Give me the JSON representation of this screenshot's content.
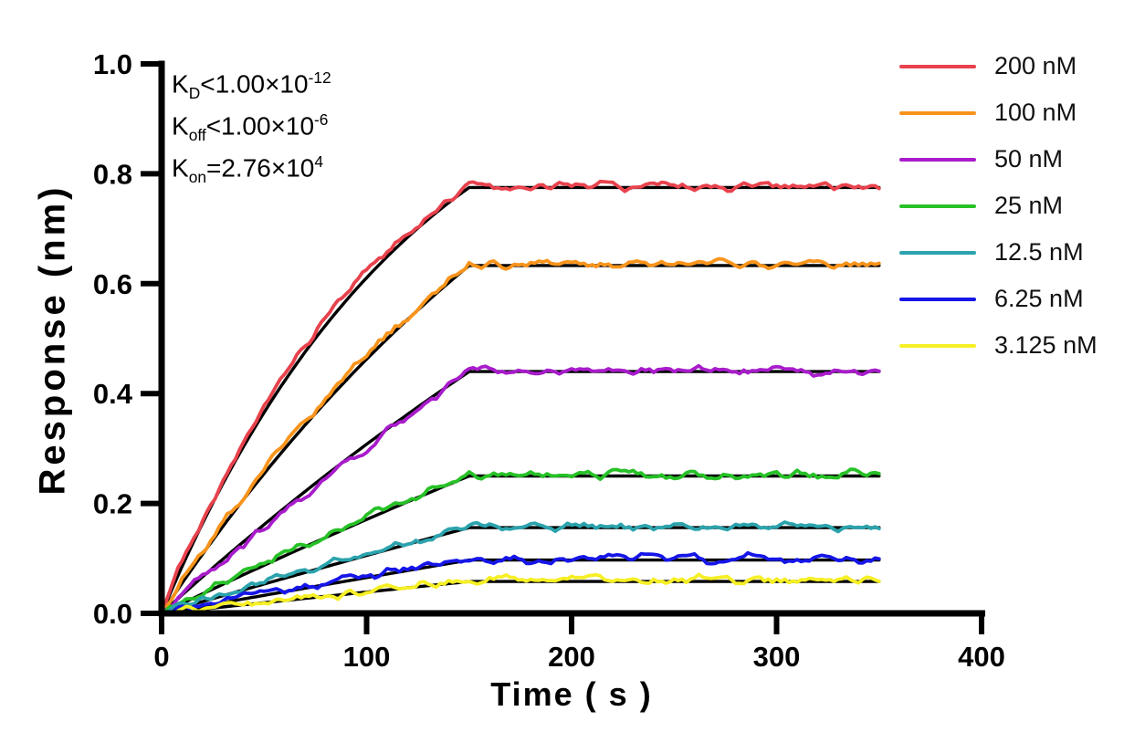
{
  "chart_data": {
    "type": "line",
    "title": "",
    "xlabel": "Time ( s )",
    "ylabel": "Response (nm)",
    "xlim": [
      0,
      400
    ],
    "ylim": [
      0,
      1.0
    ],
    "xtick_labels": [
      "0",
      "100",
      "200",
      "300",
      "400"
    ],
    "ytick_labels": [
      "0.0",
      "0.2",
      "0.4",
      "0.6",
      "0.8",
      "1.0"
    ],
    "grid": false,
    "legend_position": "right-outside",
    "association_end_s": 150,
    "curve_end_s": 350,
    "fit_color": "#000000",
    "noise_amplitude_nm": 0.004,
    "series": [
      {
        "label": "200 nM",
        "concentration_nM": 200,
        "color": "#E8424D",
        "plateau_nm": 0.775,
        "kobs_per_s": 0.008
      },
      {
        "label": "100 nM",
        "concentration_nM": 100,
        "color": "#F8941C",
        "plateau_nm": 0.633,
        "kobs_per_s": 0.004
      },
      {
        "label": "50 nM",
        "concentration_nM": 50,
        "color": "#A81CCB",
        "plateau_nm": 0.44,
        "kobs_per_s": 0.002
      },
      {
        "label": "25 nM",
        "concentration_nM": 25,
        "color": "#27C127",
        "plateau_nm": 0.25,
        "kobs_per_s": 0.001
      },
      {
        "label": "12.5 nM",
        "concentration_nM": 12.5,
        "color": "#2BA3AD",
        "plateau_nm": 0.156,
        "kobs_per_s": 0.0005
      },
      {
        "label": "6.25 nM",
        "concentration_nM": 6.25,
        "color": "#1616E8",
        "plateau_nm": 0.097,
        "kobs_per_s": 0.00025
      },
      {
        "label": "3.125 nM",
        "concentration_nM": 3.125,
        "color": "#F6EF25",
        "plateau_nm": 0.058,
        "kobs_per_s": 0.000125
      }
    ]
  },
  "annotation": {
    "lines": [
      {
        "base": "K",
        "sub": "D",
        "body": "<1.00×10",
        "sup": "-12"
      },
      {
        "base": "K",
        "sub": "off",
        "body": "<1.00×10",
        "sup": "-6"
      },
      {
        "base": "K",
        "sub": "on",
        "body": "=2.76×10",
        "sup": "4"
      }
    ]
  }
}
